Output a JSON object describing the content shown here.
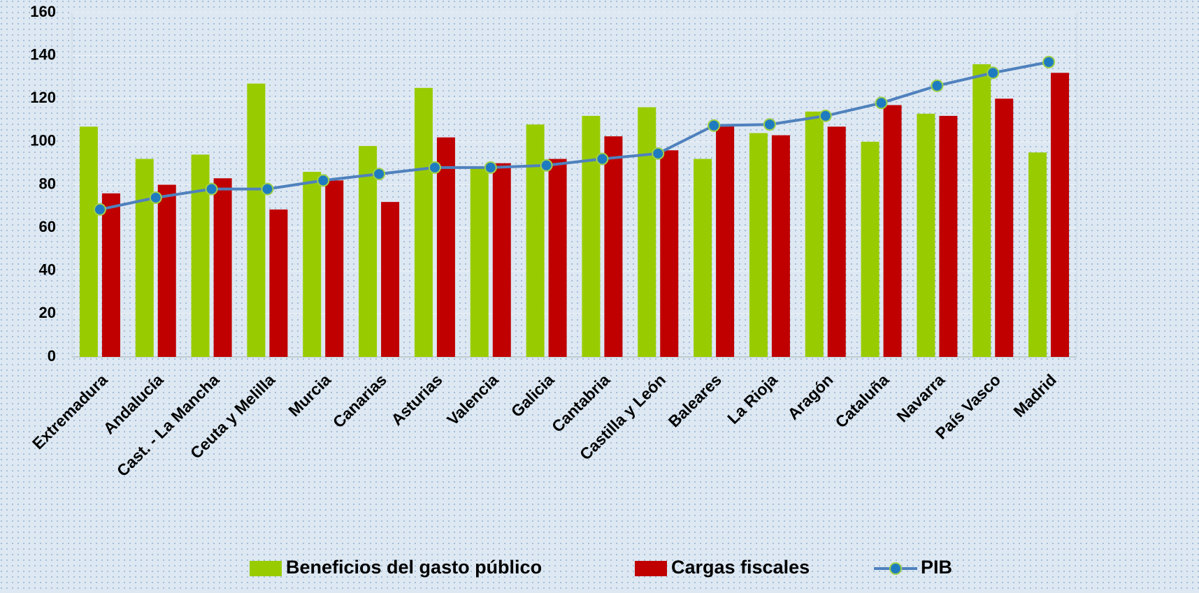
{
  "chart_data": {
    "type": "bar",
    "categories": [
      "Extremadura",
      "Andalucía",
      "Cast. - La Mancha",
      "Ceuta y Melilla",
      "Murcia",
      "Canarias",
      "Asturias",
      "Valencia",
      "Galicia",
      "Cantabria",
      "Castilla y León",
      "Baleares",
      "La Rioja",
      "Aragón",
      "Cataluña",
      "Navarra",
      "País Vasco",
      "Madrid"
    ],
    "series": [
      {
        "name": "Beneficios del gasto público",
        "color": "#99cc00",
        "type": "bar",
        "values": [
          107,
          92,
          94,
          127,
          86,
          98,
          125,
          88,
          108,
          112,
          116,
          92,
          104,
          114,
          100,
          113,
          136,
          95
        ]
      },
      {
        "name": "Cargas fiscales",
        "color": "#c00000",
        "type": "bar",
        "values": [
          76,
          80,
          83,
          68.5,
          82,
          72,
          102,
          90,
          92,
          102.5,
          96,
          107.5,
          103,
          107,
          117,
          112,
          120,
          132
        ]
      },
      {
        "name": "PIB",
        "color": "#4f81bd",
        "type": "line",
        "values": [
          68.5,
          74,
          78,
          78,
          82,
          85,
          88,
          88,
          89,
          92,
          94.5,
          107.5,
          108,
          112,
          118,
          126,
          132,
          137
        ]
      }
    ],
    "ylim": [
      0,
      160
    ],
    "yticks": [
      0,
      20,
      40,
      60,
      80,
      100,
      120,
      140,
      160
    ],
    "grid": true,
    "legend": "bottom"
  }
}
